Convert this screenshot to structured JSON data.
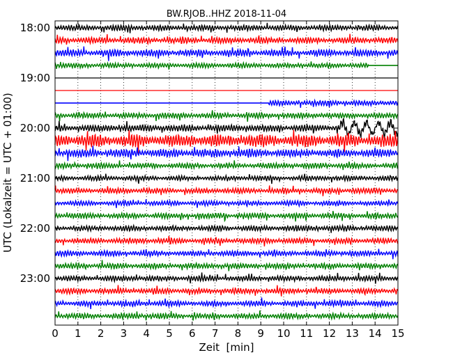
{
  "chart_data": {
    "type": "line",
    "title": "BW.RJOB..HHZ 2018-11-04",
    "xlabel": "Zeit  [min]",
    "ylabel": "UTC (Lokalzeit = UTC + 01:00)",
    "xlim": [
      0,
      15
    ],
    "x_ticks": [
      "0",
      "1",
      "2",
      "3",
      "4",
      "5",
      "6",
      "7",
      "8",
      "9",
      "10",
      "11",
      "12",
      "13",
      "14",
      "15"
    ],
    "y_ticks": [
      "18:00",
      "19:00",
      "20:00",
      "21:00",
      "22:00",
      "23:00"
    ],
    "grid": "vertical dotted lines at each minute",
    "colors": [
      "#000000",
      "#ff0000",
      "#0000ff",
      "#008000"
    ],
    "traces": [
      {
        "label": "18:00",
        "color": "#000000",
        "amp": 0.45
      },
      {
        "label": "18:15",
        "color": "#ff0000",
        "amp": 0.5
      },
      {
        "label": "18:30",
        "color": "#0000ff",
        "amp": 0.55
      },
      {
        "label": "18:45",
        "color": "#008000",
        "amp": 0.4,
        "end": 13.7
      },
      {
        "label": "19:00",
        "color": "#000000",
        "amp": 0.0
      },
      {
        "label": "19:15",
        "color": "#ff0000",
        "amp": 0.0
      },
      {
        "label": "19:30",
        "color": "#0000ff",
        "amp": 0.45,
        "start": 9.35
      },
      {
        "label": "19:45",
        "color": "#008000",
        "amp": 0.45
      },
      {
        "label": "20:00",
        "color": "#000000",
        "amp": 0.55,
        "burst": [
          12.4,
          15,
          1.2
        ]
      },
      {
        "label": "20:15",
        "color": "#ff0000",
        "amp": 1.0
      },
      {
        "label": "20:30",
        "color": "#0000ff",
        "amp": 0.65
      },
      {
        "label": "20:45",
        "color": "#008000",
        "amp": 0.45
      },
      {
        "label": "21:00",
        "color": "#000000",
        "amp": 0.4
      },
      {
        "label": "21:15",
        "color": "#ff0000",
        "amp": 0.45
      },
      {
        "label": "21:30",
        "color": "#0000ff",
        "amp": 0.4
      },
      {
        "label": "21:45",
        "color": "#008000",
        "amp": 0.45
      },
      {
        "label": "22:00",
        "color": "#000000",
        "amp": 0.45
      },
      {
        "label": "22:15",
        "color": "#ff0000",
        "amp": 0.45
      },
      {
        "label": "22:30",
        "color": "#0000ff",
        "amp": 0.45
      },
      {
        "label": "22:45",
        "color": "#008000",
        "amp": 0.45
      },
      {
        "label": "23:00",
        "color": "#000000",
        "amp": 0.45
      },
      {
        "label": "23:15",
        "color": "#ff0000",
        "amp": 0.45
      },
      {
        "label": "23:30",
        "color": "#0000ff",
        "amp": 0.45
      },
      {
        "label": "23:45",
        "color": "#008000",
        "amp": 0.45
      }
    ]
  }
}
